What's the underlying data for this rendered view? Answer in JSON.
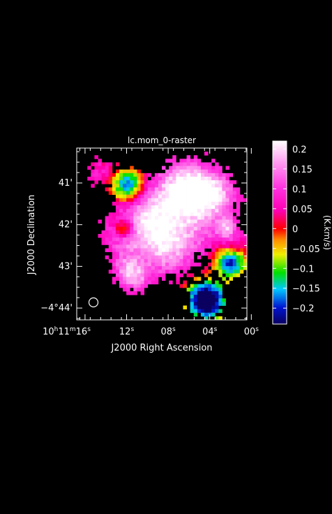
{
  "chart_data": {
    "type": "heatmap",
    "title": "lc.mom_0-raster",
    "xlabel": "J2000 Right Ascension",
    "ylabel": "J2000 Declination",
    "colorbar_label": "(K.km/s)",
    "x_ticks": [
      {
        "label": "10h11m16s",
        "hh": "10",
        "mm": "11",
        "ss": "16",
        "first": true,
        "value_s": 16
      },
      {
        "label": "12s",
        "ss": "12",
        "value_s": 12
      },
      {
        "label": "08s",
        "ss": "08",
        "value_s": 8
      },
      {
        "label": "04s",
        "ss": "04",
        "value_s": 4
      },
      {
        "label": "00s",
        "ss": "00",
        "value_s": 0
      }
    ],
    "y_ticks": [
      {
        "label": "41'",
        "value_arcmin": 41
      },
      {
        "label": "42'",
        "value_arcmin": 42
      },
      {
        "label": "43'",
        "value_arcmin": 43
      },
      {
        "label": "−4°44'",
        "value_arcmin": 44
      }
    ],
    "colorbar": {
      "range": [
        -0.24,
        0.22
      ],
      "ticks": [
        "0.2",
        "0.15",
        "0.1",
        "0.05",
        "0",
        "−0.05",
        "−0.1",
        "−0.15",
        "−0.2"
      ],
      "tick_values": [
        0.2,
        0.15,
        0.1,
        0.05,
        0,
        -0.05,
        -0.1,
        -0.15,
        -0.2
      ],
      "colormap": "rainbow (dark blue → cyan → green → yellow → orange → red → magenta → white)"
    },
    "beam": "circle (lower-left)",
    "grid": false,
    "background": "#000000",
    "frame_color": "#ffffff"
  }
}
